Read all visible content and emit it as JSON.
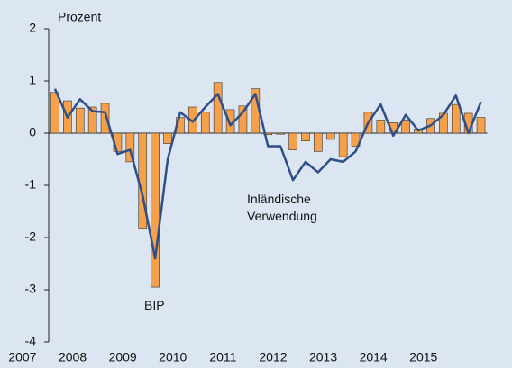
{
  "chart_data": {
    "type": "bar",
    "y_label": "Prozent",
    "categories": [
      "2007",
      null,
      null,
      null,
      "2008",
      null,
      null,
      null,
      "2009",
      null,
      null,
      null,
      "2010",
      null,
      null,
      null,
      "2011",
      null,
      null,
      null,
      "2012",
      null,
      null,
      null,
      "2013",
      null,
      null,
      null,
      "2014",
      null,
      null,
      null,
      "2015",
      null,
      null
    ],
    "series": [
      {
        "name": "BIP",
        "type": "bar",
        "color": "#f5a04a",
        "values": [
          0.78,
          0.62,
          0.48,
          0.5,
          0.57,
          -0.35,
          -0.55,
          -1.82,
          -2.95,
          -0.2,
          0.3,
          0.5,
          0.4,
          0.97,
          0.45,
          0.52,
          0.85,
          -0.03,
          -0.02,
          -0.32,
          -0.15,
          -0.35,
          -0.12,
          -0.45,
          -0.25,
          0.4,
          0.25,
          0.2,
          0.25,
          0.08,
          0.28,
          0.38,
          0.55,
          0.38,
          0.3
        ]
      },
      {
        "name": "Inländische Verwendung",
        "type": "line",
        "color": "#2f4f86",
        "values": [
          0.85,
          0.3,
          0.65,
          0.42,
          0.4,
          -0.4,
          -0.32,
          -1.2,
          -2.4,
          -0.5,
          0.4,
          0.22,
          0.5,
          0.75,
          0.15,
          0.4,
          0.75,
          -0.25,
          -0.25,
          -0.9,
          -0.55,
          -0.75,
          -0.5,
          -0.55,
          -0.35,
          0.2,
          0.55,
          -0.05,
          0.35,
          0.05,
          0.15,
          0.35,
          0.72,
          0.0,
          0.6
        ]
      }
    ],
    "ylim": [
      -4,
      2
    ],
    "yticks": [
      -4,
      -3,
      -2,
      -1,
      0,
      1,
      2
    ]
  }
}
